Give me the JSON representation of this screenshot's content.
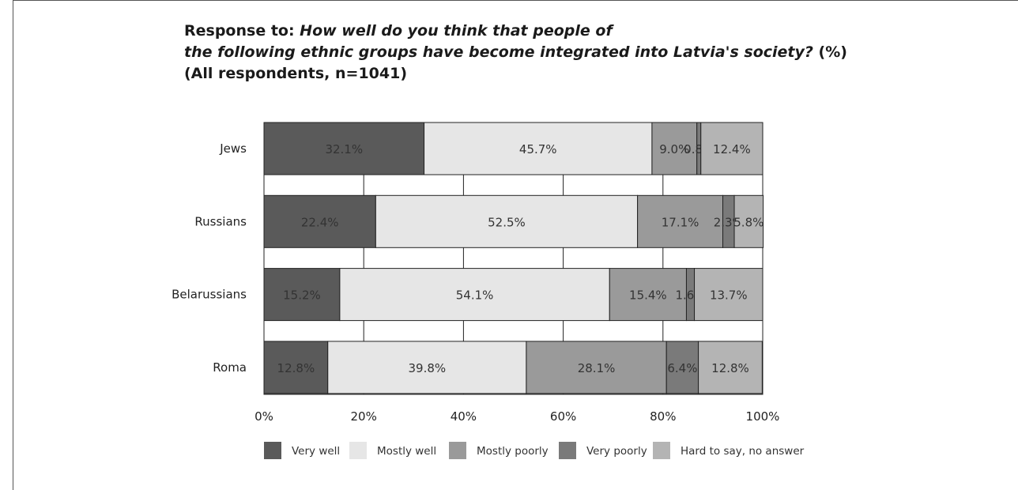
{
  "title": {
    "prefix": "Response to: ",
    "question_line1": "How well do you think that people of",
    "question_line2": "the following ethnic groups have become integrated into Latvia's society?",
    "suffix": " (%)",
    "line3": "(All respondents, n=1041)"
  },
  "chart_data": {
    "type": "bar",
    "orientation": "horizontal",
    "stacked": true,
    "categories": [
      "Jews",
      "Russians",
      "Belarussians",
      "Roma"
    ],
    "series": [
      {
        "name": "Very well",
        "values": [
          32.1,
          22.4,
          15.2,
          12.8
        ],
        "labels": [
          "32.1%",
          "22.4%",
          "15.2%",
          "12.8%"
        ],
        "color": "#5a5a5a"
      },
      {
        "name": "Mostly well",
        "values": [
          45.7,
          52.5,
          54.1,
          39.8
        ],
        "labels": [
          "45.7%",
          "52.5%",
          "54.1%",
          "39.8%"
        ],
        "color": "#e6e6e6"
      },
      {
        "name": "Mostly poorly",
        "values": [
          9.0,
          17.1,
          15.4,
          28.1
        ],
        "labels": [
          "9.0%",
          "17.1%",
          "15.4%",
          "28.1%"
        ],
        "color": "#9a9a9a"
      },
      {
        "name": "Very poorly",
        "values": [
          0.8,
          2.3,
          1.6,
          6.4
        ],
        "labels": [
          "0.8%",
          "2.3%",
          "1.6%",
          "6.4%"
        ],
        "color": "#7a7a7a"
      },
      {
        "name": "Hard to say, no answer",
        "values": [
          12.4,
          5.8,
          13.7,
          12.8
        ],
        "labels": [
          "12.4%",
          "5.8%",
          "13.7%",
          "12.8%"
        ],
        "color": "#b4b4b4"
      }
    ],
    "xlim": [
      0,
      100
    ],
    "xticks": [
      "0%",
      "20%",
      "40%",
      "60%",
      "80%",
      "100%"
    ],
    "grid": true,
    "legend_position": "bottom"
  }
}
